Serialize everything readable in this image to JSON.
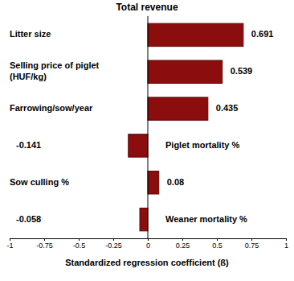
{
  "chart_data": {
    "type": "bar",
    "title": "Total revenue",
    "orientation": "horizontal",
    "categories": [
      "Litter size",
      "Selling price of piglet (HUF/kg)",
      "Farrowing/sow/year",
      "Piglet mortality %",
      "Sow culling %",
      "Weaner mortality %"
    ],
    "values": [
      0.691,
      0.539,
      0.435,
      -0.141,
      0.08,
      -0.058
    ],
    "color": "#8b0d0d",
    "x_label": "Standardized regression coefficient (ß)",
    "xlim": [
      -1,
      1
    ],
    "xticks": [
      -1,
      -0.75,
      -0.5,
      -0.25,
      0,
      0.25,
      0.5,
      0.75,
      1
    ],
    "data_labels": true,
    "grid": false
  }
}
